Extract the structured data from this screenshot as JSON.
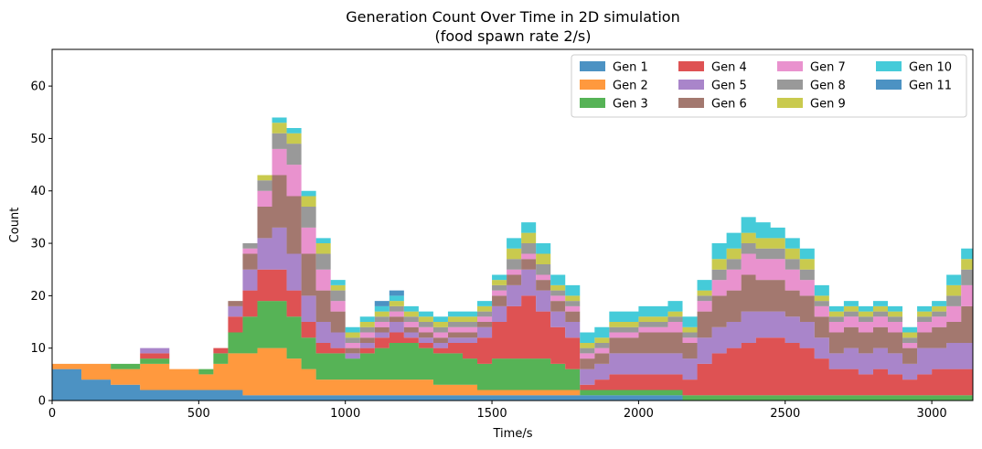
{
  "chart_data": {
    "type": "area",
    "stacked": true,
    "title": "Generation Count Over Time in 2D simulation",
    "subtitle": "(food spawn rate 2/s)",
    "xlabel": "Time/s",
    "ylabel": "Count",
    "xlim": [
      0,
      3140
    ],
    "ylim": [
      0,
      67
    ],
    "x_ticks": [
      0,
      500,
      1000,
      1500,
      2000,
      2500,
      3000
    ],
    "y_ticks": [
      0,
      10,
      20,
      30,
      40,
      50,
      60
    ],
    "legend_position": "top-right",
    "legend_columns": 4,
    "x": [
      0,
      100,
      200,
      300,
      400,
      500,
      550,
      600,
      650,
      700,
      750,
      800,
      850,
      900,
      950,
      1000,
      1050,
      1100,
      1150,
      1200,
      1250,
      1300,
      1350,
      1400,
      1450,
      1500,
      1550,
      1600,
      1650,
      1700,
      1750,
      1800,
      1850,
      1900,
      2000,
      2100,
      2150,
      2200,
      2250,
      2300,
      2350,
      2400,
      2450,
      2500,
      2550,
      2600,
      2650,
      2700,
      2750,
      2800,
      2850,
      2900,
      2950,
      3000,
      3050,
      3100,
      3140
    ],
    "series": [
      {
        "name": "Gen 1",
        "color": "#1f77b4",
        "values": [
          6,
          4,
          3,
          2,
          2,
          2,
          2,
          2,
          1,
          1,
          1,
          1,
          1,
          1,
          1,
          1,
          1,
          1,
          1,
          1,
          1,
          1,
          1,
          1,
          1,
          1,
          1,
          1,
          1,
          1,
          1,
          1,
          1,
          1,
          1,
          1,
          0,
          0,
          0,
          0,
          0,
          0,
          0,
          0,
          0,
          0,
          0,
          0,
          0,
          0,
          0,
          0,
          0,
          0,
          0,
          0,
          0
        ]
      },
      {
        "name": "Gen 2",
        "color": "#ff7f0e",
        "values": [
          1,
          3,
          3,
          5,
          4,
          3,
          5,
          7,
          8,
          9,
          9,
          7,
          5,
          3,
          3,
          3,
          3,
          3,
          3,
          3,
          3,
          2,
          2,
          2,
          1,
          1,
          1,
          1,
          1,
          1,
          1,
          0,
          0,
          0,
          0,
          0,
          0,
          0,
          0,
          0,
          0,
          0,
          0,
          0,
          0,
          0,
          0,
          0,
          0,
          0,
          0,
          0,
          0,
          0,
          0,
          0,
          0
        ]
      },
      {
        "name": "Gen 3",
        "color": "#2ca02c",
        "values": [
          0,
          0,
          1,
          1,
          0,
          1,
          2,
          4,
          7,
          9,
          9,
          8,
          6,
          5,
          5,
          4,
          5,
          6,
          7,
          7,
          6,
          6,
          6,
          5,
          5,
          6,
          6,
          6,
          6,
          5,
          4,
          1,
          1,
          1,
          1,
          1,
          1,
          1,
          1,
          1,
          1,
          1,
          1,
          1,
          1,
          1,
          1,
          1,
          1,
          1,
          1,
          1,
          1,
          1,
          1,
          1,
          1
        ]
      },
      {
        "name": "Gen 4",
        "color": "#d62728",
        "values": [
          0,
          0,
          0,
          1,
          0,
          0,
          1,
          3,
          5,
          6,
          6,
          5,
          3,
          2,
          1,
          0,
          1,
          2,
          2,
          1,
          1,
          1,
          2,
          3,
          5,
          7,
          10,
          12,
          9,
          7,
          6,
          1,
          2,
          3,
          3,
          3,
          3,
          6,
          8,
          9,
          10,
          11,
          11,
          10,
          9,
          7,
          5,
          5,
          4,
          5,
          4,
          3,
          4,
          5,
          5,
          5,
          5
        ]
      },
      {
        "name": "Gen 5",
        "color": "#9467bd",
        "values": [
          0,
          0,
          0,
          1,
          0,
          0,
          0,
          2,
          4,
          6,
          8,
          7,
          5,
          4,
          3,
          1,
          1,
          1,
          2,
          1,
          1,
          1,
          1,
          1,
          2,
          3,
          4,
          5,
          4,
          3,
          3,
          3,
          3,
          4,
          4,
          4,
          4,
          5,
          5,
          5,
          6,
          5,
          5,
          5,
          5,
          4,
          3,
          4,
          4,
          4,
          4,
          3,
          5,
          4,
          5,
          5,
          5
        ]
      },
      {
        "name": "Gen 6",
        "color": "#8c564b",
        "values": [
          0,
          0,
          0,
          0,
          0,
          0,
          0,
          1,
          3,
          6,
          10,
          11,
          8,
          6,
          4,
          1,
          1,
          1,
          1,
          1,
          1,
          1,
          1,
          1,
          1,
          2,
          2,
          2,
          2,
          2,
          2,
          2,
          2,
          3,
          4,
          4,
          3,
          5,
          6,
          6,
          7,
          6,
          6,
          5,
          5,
          4,
          4,
          4,
          4,
          4,
          4,
          3,
          3,
          4,
          4,
          7,
          7
        ]
      },
      {
        "name": "Gen 7",
        "color": "#e377c2",
        "values": [
          0,
          0,
          0,
          0,
          0,
          0,
          0,
          0,
          1,
          3,
          5,
          6,
          5,
          4,
          2,
          1,
          1,
          1,
          1,
          1,
          1,
          1,
          1,
          1,
          1,
          1,
          1,
          1,
          1,
          1,
          1,
          1,
          1,
          1,
          1,
          2,
          1,
          2,
          3,
          4,
          4,
          4,
          4,
          4,
          3,
          2,
          2,
          2,
          2,
          2,
          2,
          1,
          2,
          2,
          3,
          4,
          4
        ]
      },
      {
        "name": "Gen 8",
        "color": "#7f7f7f",
        "values": [
          0,
          0,
          0,
          0,
          0,
          0,
          0,
          0,
          1,
          2,
          3,
          4,
          4,
          3,
          2,
          1,
          1,
          1,
          1,
          1,
          1,
          1,
          1,
          1,
          1,
          1,
          2,
          2,
          2,
          1,
          1,
          1,
          1,
          1,
          1,
          1,
          1,
          1,
          2,
          2,
          2,
          2,
          2,
          2,
          2,
          1,
          1,
          1,
          1,
          1,
          1,
          1,
          1,
          1,
          2,
          3,
          3
        ]
      },
      {
        "name": "Gen 9",
        "color": "#bcbd22",
        "values": [
          0,
          0,
          0,
          0,
          0,
          0,
          0,
          0,
          0,
          1,
          2,
          2,
          2,
          2,
          1,
          1,
          1,
          1,
          1,
          1,
          1,
          1,
          1,
          1,
          1,
          1,
          2,
          2,
          2,
          1,
          1,
          1,
          1,
          1,
          1,
          1,
          1,
          1,
          2,
          2,
          2,
          2,
          2,
          2,
          2,
          1,
          1,
          1,
          1,
          1,
          1,
          1,
          1,
          1,
          2,
          2,
          2
        ]
      },
      {
        "name": "Gen 10",
        "color": "#17becf",
        "values": [
          0,
          0,
          0,
          0,
          0,
          0,
          0,
          0,
          0,
          0,
          1,
          1,
          1,
          1,
          1,
          1,
          1,
          1,
          1,
          1,
          1,
          1,
          1,
          1,
          1,
          1,
          2,
          2,
          2,
          2,
          2,
          2,
          2,
          2,
          2,
          2,
          2,
          2,
          3,
          3,
          3,
          3,
          2,
          2,
          2,
          2,
          1,
          1,
          1,
          1,
          1,
          1,
          1,
          1,
          2,
          2,
          2
        ]
      },
      {
        "name": "Gen 11",
        "color": "#1f77b4",
        "values": [
          0,
          0,
          0,
          0,
          0,
          0,
          0,
          0,
          0,
          0,
          0,
          0,
          0,
          0,
          0,
          0,
          0,
          1,
          1,
          0,
          0,
          0,
          0,
          0,
          0,
          0,
          0,
          0,
          0,
          0,
          0,
          0,
          0,
          0,
          0,
          0,
          0,
          0,
          0,
          0,
          0,
          0,
          0,
          0,
          0,
          0,
          0,
          0,
          0,
          0,
          0,
          0,
          0,
          0,
          0,
          0,
          0
        ]
      }
    ]
  }
}
